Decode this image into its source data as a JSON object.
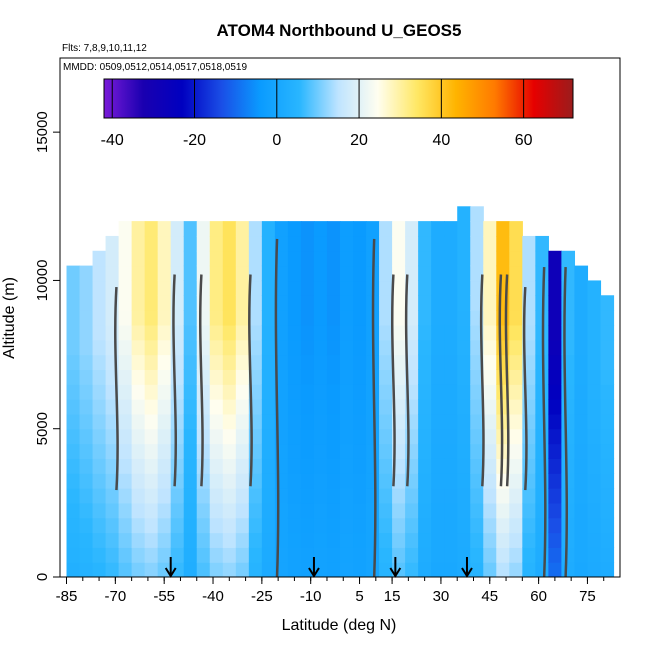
{
  "chart_data": {
    "type": "heatmap",
    "title": "ATOM4 Northbound U_GEOS5",
    "subtitle_flights": "Flts: 7,8,9,10,11,12",
    "subtitle_dates": "MMDD: 0509,0512,0514,0517,0518,0519",
    "xlabel": "Latitude (deg N)",
    "ylabel": "Altitude (m)",
    "xlim": [
      -87,
      85
    ],
    "ylim": [
      0,
      17500
    ],
    "x_ticks": [
      -85,
      -70,
      -55,
      -40,
      -25,
      -10,
      5,
      15,
      30,
      45,
      60,
      75
    ],
    "x_tick_labels": [
      "-85",
      "-70",
      "-55",
      "-40",
      "-25",
      "-10",
      "5",
      "15",
      "30",
      "45",
      "60",
      "75"
    ],
    "y_ticks": [
      0,
      5000,
      10000,
      15000
    ],
    "y_tick_labels": [
      "0",
      "5000",
      "10000",
      "15000"
    ],
    "colorbar": {
      "min": -42,
      "max": 72,
      "ticks": [
        -40,
        -20,
        0,
        20,
        40,
        60
      ],
      "tick_labels": [
        "-40",
        "-20",
        "0",
        "20",
        "40",
        "60"
      ],
      "colors": [
        "#7a1bd9",
        "#1a00b0",
        "#0000c0",
        "#1a4de6",
        "#0a9bff",
        "#29b6ff",
        "#bfe4ff",
        "#fffef0",
        "#ffe866",
        "#ffb400",
        "#ff7a00",
        "#e60000",
        "#9b1c1c"
      ]
    },
    "contour_labels": [
      "0",
      "20",
      "40"
    ],
    "flight_markers_lat": [
      -53,
      -9,
      16,
      38
    ],
    "wind_bands": [
      {
        "lat": -83,
        "alt_top": 10500,
        "value": 10
      },
      {
        "lat": -79,
        "alt_top": 10500,
        "value": 12
      },
      {
        "lat": -75,
        "alt_top": 11000,
        "value": 15
      },
      {
        "lat": -71,
        "alt_top": 11500,
        "value": 18
      },
      {
        "lat": -67,
        "alt_top": 12000,
        "value": 24
      },
      {
        "lat": -63,
        "alt_top": 12000,
        "value": 30
      },
      {
        "lat": -59,
        "alt_top": 12000,
        "value": 33
      },
      {
        "lat": -55,
        "alt_top": 12000,
        "value": 28
      },
      {
        "lat": -51,
        "alt_top": 12000,
        "value": 18
      },
      {
        "lat": -47,
        "alt_top": 12000,
        "value": 8
      },
      {
        "lat": -43,
        "alt_top": 12000,
        "value": 22
      },
      {
        "lat": -39,
        "alt_top": 12000,
        "value": 32
      },
      {
        "lat": -35,
        "alt_top": 12000,
        "value": 35
      },
      {
        "lat": -31,
        "alt_top": 12000,
        "value": 30
      },
      {
        "lat": -27,
        "alt_top": 12000,
        "value": 14
      },
      {
        "lat": -23,
        "alt_top": 12000,
        "value": 4
      },
      {
        "lat": -19,
        "alt_top": 12000,
        "value": -2
      },
      {
        "lat": -15,
        "alt_top": 12000,
        "value": -4
      },
      {
        "lat": -11,
        "alt_top": 12000,
        "value": -5
      },
      {
        "lat": -7,
        "alt_top": 12000,
        "value": -4
      },
      {
        "lat": -3,
        "alt_top": 12000,
        "value": -5
      },
      {
        "lat": 1,
        "alt_top": 12000,
        "value": -3
      },
      {
        "lat": 5,
        "alt_top": 12000,
        "value": -4
      },
      {
        "lat": 9,
        "alt_top": 12000,
        "value": -2
      },
      {
        "lat": 13,
        "alt_top": 12000,
        "value": 14
      },
      {
        "lat": 17,
        "alt_top": 12000,
        "value": 24
      },
      {
        "lat": 21,
        "alt_top": 12000,
        "value": 18
      },
      {
        "lat": 25,
        "alt_top": 12000,
        "value": 6
      },
      {
        "lat": 29,
        "alt_top": 12000,
        "value": 2
      },
      {
        "lat": 33,
        "alt_top": 12000,
        "value": 2
      },
      {
        "lat": 37,
        "alt_top": 12500,
        "value": 4
      },
      {
        "lat": 41,
        "alt_top": 12500,
        "value": 14
      },
      {
        "lat": 45,
        "alt_top": 12000,
        "value": 28
      },
      {
        "lat": 49,
        "alt_top": 12000,
        "value": 42
      },
      {
        "lat": 53,
        "alt_top": 12000,
        "value": 36
      },
      {
        "lat": 57,
        "alt_top": 11500,
        "value": 14
      },
      {
        "lat": 61,
        "alt_top": 11500,
        "value": 6
      },
      {
        "lat": 65,
        "alt_top": 11000,
        "value": -28
      },
      {
        "lat": 69,
        "alt_top": 11000,
        "value": 6
      },
      {
        "lat": 73,
        "alt_top": 10500,
        "value": 2
      },
      {
        "lat": 77,
        "alt_top": 10000,
        "value": 4
      },
      {
        "lat": 81,
        "alt_top": 9500,
        "value": 6
      }
    ]
  }
}
